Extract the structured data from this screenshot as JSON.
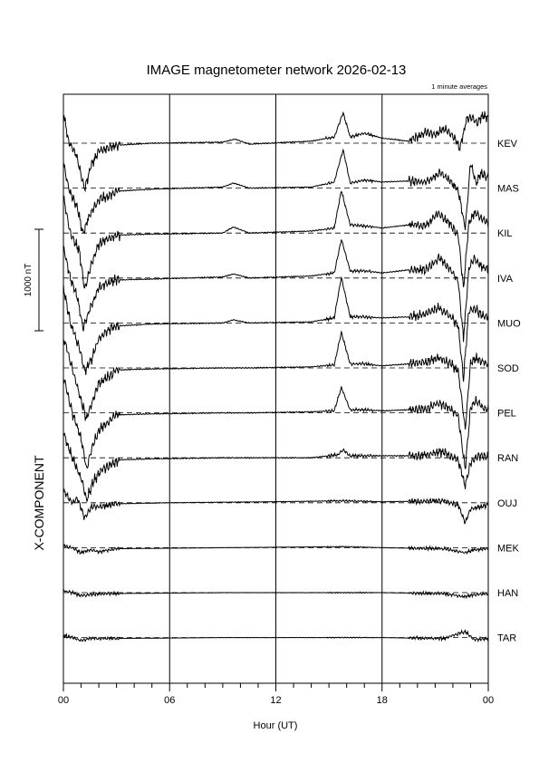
{
  "chart_data": {
    "type": "line",
    "title": "IMAGE magnetometer network 2026-02-13",
    "subtitle": "1 minute averages",
    "component": "X-COMPONENT",
    "xlabel": "Hour (UT)",
    "scale_label": "1000 nT",
    "scale_nT": 1000,
    "x_ticks": [
      "00",
      "06",
      "12",
      "18",
      "00"
    ],
    "xlim": [
      0,
      24
    ],
    "grid": "vertical lines every 6 h; dashed baseline per station",
    "stations": [
      "KEV",
      "MAS",
      "KIL",
      "IVA",
      "MUO",
      "SOD",
      "PEL",
      "RAN",
      "OUJ",
      "MEK",
      "HAN",
      "TAR"
    ],
    "series": [
      {
        "name": "KEV",
        "points": [
          [
            0,
            -300
          ],
          [
            0.3,
            0
          ],
          [
            0.7,
            100
          ],
          [
            1.2,
            450
          ],
          [
            1.6,
            200
          ],
          [
            2,
            80
          ],
          [
            3,
            20
          ],
          [
            5,
            0
          ],
          [
            9,
            -10
          ],
          [
            9.7,
            -40
          ],
          [
            10.5,
            10
          ],
          [
            14,
            -20
          ],
          [
            15.3,
            -60
          ],
          [
            15.8,
            -300
          ],
          [
            16.2,
            -60
          ],
          [
            17,
            -100
          ],
          [
            18,
            -50
          ],
          [
            19.5,
            -20
          ],
          [
            20.5,
            -110
          ],
          [
            21,
            -80
          ],
          [
            21.5,
            -150
          ],
          [
            22.1,
            -50
          ],
          [
            22.4,
            50
          ],
          [
            22.8,
            -250
          ],
          [
            23.1,
            -250
          ],
          [
            23.4,
            -200
          ],
          [
            23.7,
            -280
          ],
          [
            24,
            -250
          ]
        ]
      },
      {
        "name": "MAS",
        "points": [
          [
            0,
            -250
          ],
          [
            0.3,
            0
          ],
          [
            0.8,
            200
          ],
          [
            1.1,
            450
          ],
          [
            1.5,
            250
          ],
          [
            2,
            120
          ],
          [
            3,
            30
          ],
          [
            5,
            10
          ],
          [
            9,
            -10
          ],
          [
            9.6,
            -50
          ],
          [
            10.5,
            0
          ],
          [
            14,
            -10
          ],
          [
            15.3,
            -60
          ],
          [
            15.8,
            -380
          ],
          [
            16.2,
            -50
          ],
          [
            17,
            -80
          ],
          [
            18,
            -60
          ],
          [
            19.5,
            -70
          ],
          [
            20.5,
            -60
          ],
          [
            21.3,
            -150
          ],
          [
            21.9,
            -60
          ],
          [
            22.3,
            20
          ],
          [
            22.7,
            400
          ],
          [
            23,
            -250
          ],
          [
            23.3,
            -50
          ],
          [
            23.6,
            -150
          ],
          [
            24,
            -100
          ]
        ]
      },
      {
        "name": "KIL",
        "points": [
          [
            0,
            -350
          ],
          [
            0.4,
            0
          ],
          [
            0.9,
            180
          ],
          [
            1.2,
            550
          ],
          [
            1.6,
            300
          ],
          [
            2,
            110
          ],
          [
            2.5,
            60
          ],
          [
            3,
            20
          ],
          [
            5,
            10
          ],
          [
            9,
            0
          ],
          [
            9.6,
            -60
          ],
          [
            10.5,
            0
          ],
          [
            14,
            -20
          ],
          [
            15.3,
            -50
          ],
          [
            15.7,
            -420
          ],
          [
            16.2,
            -80
          ],
          [
            17,
            -70
          ],
          [
            18,
            -50
          ],
          [
            19.5,
            -80
          ],
          [
            20.5,
            -70
          ],
          [
            21.2,
            -200
          ],
          [
            21.9,
            -80
          ],
          [
            22.3,
            20
          ],
          [
            22.6,
            550
          ],
          [
            22.9,
            -100
          ],
          [
            23.2,
            -200
          ],
          [
            23.6,
            -150
          ],
          [
            24,
            -100
          ]
        ]
      },
      {
        "name": "IVA",
        "points": [
          [
            0,
            -300
          ],
          [
            0.4,
            0
          ],
          [
            0.8,
            200
          ],
          [
            1.1,
            500
          ],
          [
            1.5,
            300
          ],
          [
            2,
            100
          ],
          [
            2.5,
            50
          ],
          [
            3,
            20
          ],
          [
            5,
            10
          ],
          [
            9,
            -10
          ],
          [
            9.6,
            -40
          ],
          [
            10.5,
            0
          ],
          [
            14,
            -20
          ],
          [
            15.3,
            -50
          ],
          [
            15.7,
            -380
          ],
          [
            16.2,
            -70
          ],
          [
            17,
            -70
          ],
          [
            18,
            -50
          ],
          [
            19.5,
            -80
          ],
          [
            20.5,
            -80
          ],
          [
            21.2,
            -200
          ],
          [
            21.9,
            -80
          ],
          [
            22.3,
            30
          ],
          [
            22.6,
            600
          ],
          [
            22.9,
            -80
          ],
          [
            23.2,
            -200
          ],
          [
            23.6,
            -120
          ],
          [
            24,
            -80
          ]
        ]
      },
      {
        "name": "MUO",
        "points": [
          [
            0,
            -350
          ],
          [
            0.4,
            0
          ],
          [
            0.9,
            250
          ],
          [
            1.2,
            480
          ],
          [
            1.6,
            350
          ],
          [
            2,
            150
          ],
          [
            2.6,
            60
          ],
          [
            3,
            30
          ],
          [
            5,
            10
          ],
          [
            9,
            0
          ],
          [
            9.6,
            -30
          ],
          [
            10.5,
            0
          ],
          [
            14,
            -10
          ],
          [
            15.3,
            -50
          ],
          [
            15.7,
            -450
          ],
          [
            16.2,
            -60
          ],
          [
            17,
            -60
          ],
          [
            18,
            -50
          ],
          [
            19.5,
            -60
          ],
          [
            20.5,
            -90
          ],
          [
            21.2,
            -150
          ],
          [
            21.9,
            -60
          ],
          [
            22.3,
            30
          ],
          [
            22.6,
            550
          ],
          [
            22.9,
            -120
          ],
          [
            23.2,
            -150
          ],
          [
            23.6,
            -80
          ],
          [
            24,
            -60
          ]
        ]
      },
      {
        "name": "SOD",
        "points": [
          [
            0,
            -300
          ],
          [
            0.5,
            0
          ],
          [
            0.9,
            250
          ],
          [
            1.3,
            500
          ],
          [
            1.6,
            350
          ],
          [
            2,
            150
          ],
          [
            2.6,
            80
          ],
          [
            3,
            20
          ],
          [
            5,
            10
          ],
          [
            9,
            0
          ],
          [
            10.5,
            0
          ],
          [
            14,
            -10
          ],
          [
            15.3,
            -30
          ],
          [
            15.7,
            -350
          ],
          [
            16.2,
            -40
          ],
          [
            17,
            -40
          ],
          [
            18,
            -20
          ],
          [
            19.5,
            -40
          ],
          [
            20.5,
            -60
          ],
          [
            21.2,
            -100
          ],
          [
            21.9,
            -40
          ],
          [
            22.3,
            30
          ],
          [
            22.7,
            600
          ],
          [
            23,
            -50
          ],
          [
            23.3,
            -100
          ],
          [
            23.7,
            -60
          ],
          [
            24,
            -40
          ]
        ]
      },
      {
        "name": "PEL",
        "points": [
          [
            0,
            -350
          ],
          [
            0.5,
            0
          ],
          [
            1,
            250
          ],
          [
            1.3,
            550
          ],
          [
            1.7,
            300
          ],
          [
            2.1,
            150
          ],
          [
            2.6,
            80
          ],
          [
            3,
            20
          ],
          [
            5,
            10
          ],
          [
            9,
            0
          ],
          [
            10.5,
            0
          ],
          [
            14,
            -10
          ],
          [
            15.3,
            -20
          ],
          [
            15.7,
            -250
          ],
          [
            16.2,
            -30
          ],
          [
            17,
            -30
          ],
          [
            18,
            -20
          ],
          [
            19.5,
            -30
          ],
          [
            20.5,
            -40
          ],
          [
            21.2,
            -100
          ],
          [
            21.9,
            -30
          ],
          [
            22.3,
            30
          ],
          [
            22.7,
            550
          ],
          [
            23,
            -50
          ],
          [
            23.3,
            -120
          ],
          [
            23.7,
            -50
          ],
          [
            24,
            -30
          ]
        ]
      },
      {
        "name": "RAN",
        "points": [
          [
            0,
            -250
          ],
          [
            0.5,
            0
          ],
          [
            1,
            200
          ],
          [
            1.3,
            420
          ],
          [
            1.7,
            220
          ],
          [
            2.2,
            120
          ],
          [
            2.8,
            60
          ],
          [
            3.2,
            20
          ],
          [
            5,
            10
          ],
          [
            9,
            0
          ],
          [
            14,
            0
          ],
          [
            15.5,
            -30
          ],
          [
            15.8,
            -80
          ],
          [
            16.2,
            -20
          ],
          [
            18,
            -20
          ],
          [
            20,
            -20
          ],
          [
            21.5,
            -60
          ],
          [
            22.3,
            30
          ],
          [
            22.7,
            280
          ],
          [
            23,
            50
          ],
          [
            23.4,
            -20
          ],
          [
            24,
            -10
          ]
        ]
      },
      {
        "name": "OUJ",
        "points": [
          [
            0,
            -120
          ],
          [
            0.5,
            0
          ],
          [
            0.8,
            -40
          ],
          [
            1.2,
            150
          ],
          [
            1.6,
            40
          ],
          [
            2,
            40
          ],
          [
            3,
            10
          ],
          [
            6,
            0
          ],
          [
            12,
            -10
          ],
          [
            15.8,
            -20
          ],
          [
            18,
            -10
          ],
          [
            21.5,
            -20
          ],
          [
            22.3,
            20
          ],
          [
            22.7,
            200
          ],
          [
            23,
            60
          ],
          [
            23.5,
            40
          ],
          [
            24,
            20
          ]
        ]
      },
      {
        "name": "MEK",
        "points": [
          [
            0,
            -20
          ],
          [
            0.5,
            0
          ],
          [
            1,
            50
          ],
          [
            1.5,
            20
          ],
          [
            2,
            40
          ],
          [
            3,
            10
          ],
          [
            9,
            0
          ],
          [
            15.8,
            -10
          ],
          [
            18,
            0
          ],
          [
            21.5,
            10
          ],
          [
            22.7,
            50
          ],
          [
            23.2,
            20
          ],
          [
            24,
            10
          ]
        ]
      },
      {
        "name": "HAN",
        "points": [
          [
            0,
            -20
          ],
          [
            0.5,
            0
          ],
          [
            1,
            30
          ],
          [
            1.5,
            20
          ],
          [
            2,
            10
          ],
          [
            9,
            0
          ],
          [
            15.8,
            0
          ],
          [
            18,
            0
          ],
          [
            21.5,
            10
          ],
          [
            22.7,
            40
          ],
          [
            23.2,
            20
          ],
          [
            24,
            10
          ]
        ]
      },
      {
        "name": "TAR",
        "points": [
          [
            0,
            -20
          ],
          [
            0.5,
            0
          ],
          [
            1,
            30
          ],
          [
            1.5,
            10
          ],
          [
            2,
            10
          ],
          [
            9,
            0
          ],
          [
            15.8,
            0
          ],
          [
            18,
            0
          ],
          [
            21.5,
            10
          ],
          [
            22.7,
            -60
          ],
          [
            23.2,
            20
          ],
          [
            24,
            10
          ]
        ]
      }
    ],
    "value_note": "points are [hour UT, X deviation in nT from station baseline, positive = downward on plot]"
  }
}
